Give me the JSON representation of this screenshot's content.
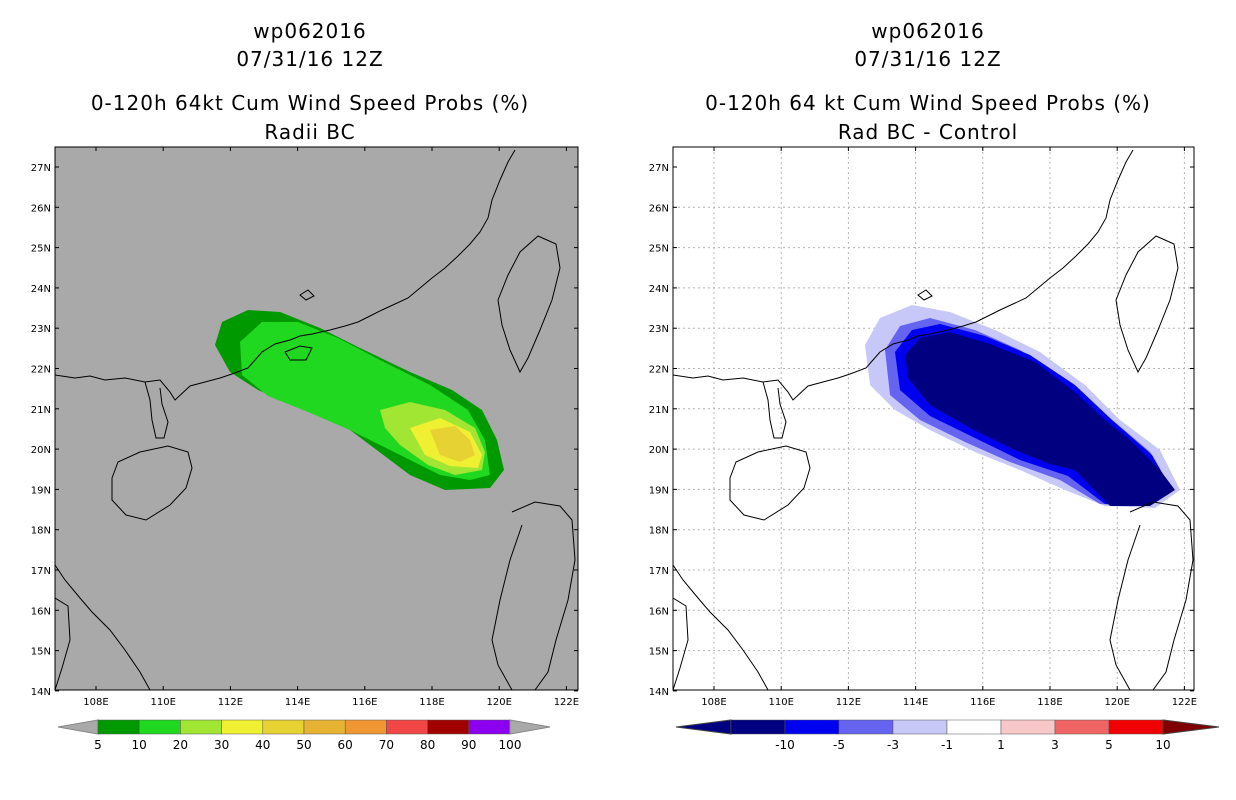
{
  "left_panel": {
    "storm_id": "wp062016",
    "datetime": "07/31/16 12Z",
    "title": "0-120h 64kt Cum Wind Speed Probs (%)",
    "subtitle": "Radii BC",
    "lat_labels": [
      "27N",
      "26N",
      "25N",
      "24N",
      "23N",
      "22N",
      "21N",
      "20N",
      "19N",
      "18N",
      "17N",
      "16N",
      "15N",
      "14N"
    ],
    "lon_labels": [
      "108E",
      "110E",
      "112E",
      "114E",
      "116E",
      "118E",
      "120E",
      "122E"
    ],
    "colorbar": {
      "labels": [
        "5",
        "10",
        "20",
        "30",
        "40",
        "50",
        "60",
        "70",
        "80",
        "90",
        "100"
      ],
      "colors": [
        "#009900",
        "#1fd81f",
        "#a0e632",
        "#f0f032",
        "#e6d232",
        "#e6b432",
        "#f09632",
        "#f04646",
        "#a00000",
        "#8c00f0"
      ],
      "end_color": "#a9a9a9"
    },
    "colors": {
      "land_sea": "#a9a9a9",
      "p5": "#009900",
      "p10": "#1fd81f",
      "p20": "#a0e632",
      "p30": "#f0f032",
      "p40": "#e6d232"
    }
  },
  "right_panel": {
    "storm_id": "wp062016",
    "datetime": "07/31/16 12Z",
    "title": "0-120h 64 kt Cum Wind Speed Probs (%)",
    "subtitle": "Rad BC - Control",
    "lat_labels": [
      "27N",
      "26N",
      "25N",
      "24N",
      "23N",
      "22N",
      "21N",
      "20N",
      "19N",
      "18N",
      "17N",
      "16N",
      "15N",
      "14N"
    ],
    "lon_labels": [
      "108E",
      "110E",
      "112E",
      "114E",
      "116E",
      "118E",
      "120E",
      "122E"
    ],
    "colorbar": {
      "labels": [
        "-10",
        "-5",
        "-3",
        "-1",
        "1",
        "3",
        "5",
        "10"
      ],
      "colors": [
        "#000080",
        "#0000f0",
        "#6464f0",
        "#c8c8f8",
        "#ffffff",
        "#f8c8c8",
        "#f06464",
        "#f00000"
      ],
      "low_end_color": "#000080",
      "high_end_color": "#800000"
    },
    "colors": {
      "dark": "#000080",
      "blue": "#0000f0",
      "mid": "#6464f0",
      "light": "#c8c8f8"
    }
  }
}
